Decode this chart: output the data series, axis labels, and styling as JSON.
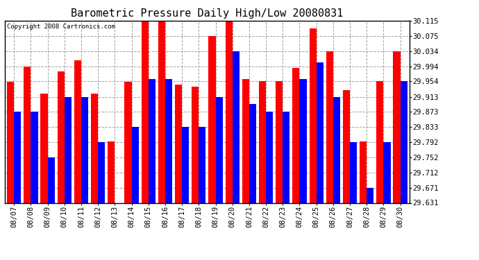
{
  "title": "Barometric Pressure Daily High/Low 20080831",
  "copyright": "Copyright 2008 Cartronics.com",
  "dates": [
    "08/07",
    "08/08",
    "08/09",
    "08/10",
    "08/11",
    "08/12",
    "08/13",
    "08/14",
    "08/15",
    "08/16",
    "08/17",
    "08/18",
    "08/19",
    "08/20",
    "08/21",
    "08/22",
    "08/23",
    "08/24",
    "08/25",
    "08/26",
    "08/27",
    "08/28",
    "08/29",
    "08/30"
  ],
  "highs": [
    29.952,
    29.994,
    29.922,
    29.98,
    30.01,
    29.922,
    29.795,
    29.952,
    30.115,
    30.115,
    29.945,
    29.94,
    30.075,
    30.115,
    29.96,
    29.954,
    29.954,
    29.99,
    30.095,
    30.034,
    29.93,
    29.795,
    29.954,
    30.034
  ],
  "lows": [
    29.873,
    29.873,
    29.752,
    29.913,
    29.913,
    29.792,
    29.631,
    29.833,
    29.96,
    29.96,
    29.833,
    29.833,
    29.913,
    30.034,
    29.893,
    29.873,
    29.873,
    29.96,
    30.005,
    29.913,
    29.792,
    29.671,
    29.792,
    29.954
  ],
  "ylim_min": 29.631,
  "ylim_max": 30.115,
  "yticks": [
    29.631,
    29.671,
    29.712,
    29.752,
    29.792,
    29.833,
    29.873,
    29.913,
    29.954,
    29.994,
    30.034,
    30.075,
    30.115
  ],
  "bar_width": 0.42,
  "high_color": "#FF0000",
  "low_color": "#0000FF",
  "bg_color": "#FFFFFF",
  "plot_bg_color": "#FFFFFF",
  "grid_color": "#999999",
  "title_fontsize": 11,
  "tick_fontsize": 7.5,
  "copyright_fontsize": 6.5
}
